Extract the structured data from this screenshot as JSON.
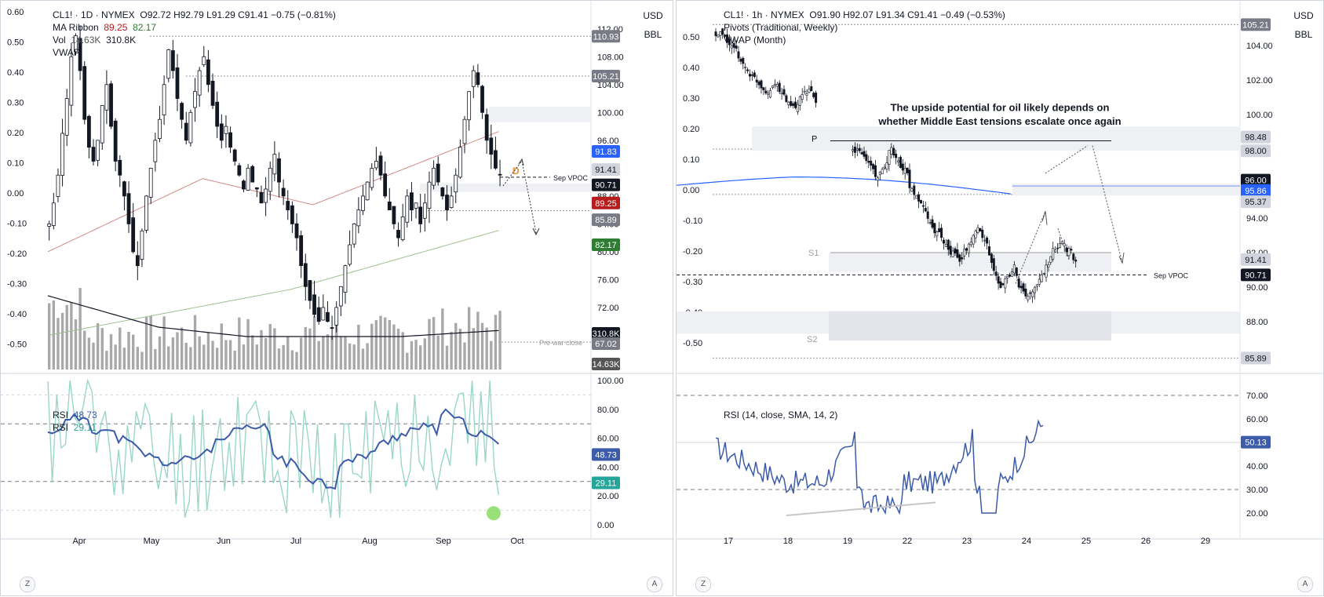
{
  "left": {
    "header": {
      "symbol": "CL1! · 1D · NYMEX",
      "ohlc": "O92.72  H92.79  L91.29  C91.41  −0.75 (−0.81%)",
      "ma_label": "MA Ribbon",
      "ma_v1": "89.25",
      "ma_v2": "82.17",
      "vol_label": "Vol",
      "vol_v1": "14.63K",
      "vol_v2": "310.8K",
      "vwap_label": "VWAP"
    },
    "unit_top": "USD",
    "unit_bottom": "BBL",
    "rsi_legend": {
      "line1_label": "RSI",
      "line1_value": "48.73",
      "line2_label": "RSI",
      "line2_value": "29.11"
    },
    "annotations": {
      "vpoc": "Sep VPOC",
      "prewar": "Pre-war close",
      "d_marker": "D"
    },
    "tags": [
      "110.93",
      "105.21",
      "91.83",
      "91.41",
      "90.71",
      "89.25",
      "85.89",
      "82.17",
      "310.8K",
      "67.02",
      "14.63K",
      "48.73",
      "29.11"
    ],
    "bottom_buttons": [
      "Z",
      "A"
    ],
    "colors": {
      "up": "#26a69a",
      "candle": "#131722",
      "ma1": "#d28b87",
      "ma2": "#9fbf8f",
      "vwap": "#131722",
      "rsi1": "#3c5ba9",
      "rsi2": "#9ad6c9",
      "vol": "#9e9e9e",
      "tag_red": "#b71c1c",
      "tag_green": "#2e7d32",
      "tag_blue": "#2962ff",
      "tag_dark": "#131722"
    }
  },
  "right": {
    "header": {
      "symbol": "CL1! · 1h · NYMEX",
      "ohlc": "O91.90  H92.07  L91.34  C91.41  −0.49 (−0.53%)",
      "pivots": "Pivots (Traditional, Weekly)",
      "vwap": "VWAP (Month)"
    },
    "unit_top": "USD",
    "unit_bottom": "BBL",
    "annotation_text_line1": "The upside potential for oil likely depends on",
    "annotation_text_line2": "whether Middle East tensions escalate once again",
    "pivot_labels": {
      "p": "P",
      "s1": "S1",
      "s2": "S2"
    },
    "vpoc": "Sep VPOC",
    "rsi_legend": "RSI (14, close, SMA, 14, 2)",
    "tags": [
      "105.21",
      "98.48",
      "98.00",
      "96.00",
      "95.86",
      "95.37",
      "91.41",
      "90.71",
      "85.89",
      "50.13"
    ],
    "bottom_buttons": [
      "Z",
      "A"
    ]
  },
  "chart_data": [
    {
      "type": "candlestick",
      "title": "CL1! · 1D · NYMEX",
      "x_ticks": [
        "Apr",
        "May",
        "Jun",
        "Jul",
        "Aug",
        "Sep",
        "Oct"
      ],
      "y_ticks_right": [
        "112.00",
        "108.00",
        "104.00",
        "100.00",
        "96.00",
        "92.00",
        "88.00",
        "84.00",
        "80.00",
        "76.00",
        "72.00",
        "68.00",
        "64.00"
      ],
      "y_ticks_left": [
        "0.60",
        "0.50",
        "0.40",
        "0.30",
        "0.20",
        "0.10",
        "0.00",
        "-0.10",
        "-0.20",
        "-0.30",
        "-0.40",
        "-0.50"
      ],
      "close_series": [
        84,
        87,
        91,
        97,
        102,
        108,
        111,
        106,
        99,
        95,
        93,
        96,
        101,
        104,
        98,
        93,
        91,
        88,
        84,
        80,
        78,
        83,
        88,
        92,
        96,
        99,
        104,
        109,
        106,
        102,
        99,
        96,
        100,
        103,
        106,
        108,
        104,
        101,
        98,
        96,
        98,
        95,
        93,
        91,
        89,
        92,
        90,
        89,
        87,
        89,
        92,
        94,
        90,
        88,
        86,
        84,
        82,
        78,
        75,
        73,
        71,
        70,
        72,
        70,
        69,
        72,
        75,
        78,
        81,
        84,
        86,
        88,
        90,
        92,
        93,
        91,
        88,
        86,
        84,
        82,
        85,
        88,
        86,
        87,
        84,
        87,
        90,
        92,
        90,
        88,
        86,
        88,
        91,
        95,
        99,
        103,
        106,
        104,
        100,
        96,
        94,
        92,
        91
      ],
      "ylim": [
        64,
        114
      ],
      "ma_ribbon": {
        "ma1": 89.25,
        "ma2": 82.17
      },
      "volume_last": "14.63K",
      "vwap_last": "310.8K",
      "levels": {
        "110.93": 110.93,
        "105.21": 105.21,
        "Sep VPOC": 90.71,
        "Pre-war close": 67.02,
        "85.89": 85.89
      },
      "rsi": {
        "series": [
          {
            "name": "RSI",
            "last": 48.73
          },
          {
            "name": "RSI",
            "last": 29.11
          }
        ],
        "y_ticks": [
          "100.00",
          "80.00",
          "60.00",
          "40.00",
          "20.00",
          "0.00"
        ],
        "ylim": [
          0,
          100
        ]
      }
    },
    {
      "type": "candlestick",
      "title": "CL1! · 1h · NYMEX",
      "x_ticks": [
        "17",
        "18",
        "19",
        "22",
        "23",
        "24",
        "25",
        "26",
        "29"
      ],
      "y_ticks_right": [
        "104.00",
        "102.00",
        "100.00",
        "98.00",
        "96.00",
        "94.00",
        "92.00",
        "90.00",
        "88.00"
      ],
      "y_ticks_left": [
        "0.50",
        "0.40",
        "0.30",
        "0.20",
        "0.10",
        "0.00",
        "-0.10",
        "-0.20",
        "-0.30",
        "-0.40",
        "-0.50"
      ],
      "close_series": [
        104.6,
        104.3,
        103.8,
        103.2,
        102.6,
        102.1,
        101.7,
        101.4,
        101.8,
        101.2,
        100.7,
        100.3,
        101.0,
        101.4,
        100.6,
        null,
        97.9,
        97.6,
        97.1,
        96.4,
        96.8,
        98.0,
        97.3,
        96.7,
        95.6,
        95.0,
        94.3,
        93.5,
        93.0,
        92.6,
        92.0,
        91.6,
        92.2,
        92.9,
        93.4,
        92.7,
        91.0,
        89.9,
        90.6,
        91.2,
        89.8,
        89.4,
        89.9,
        90.6,
        91.3,
        92.2,
        92.7,
        92.1,
        91.4
      ],
      "ylim": [
        85.5,
        105.5
      ],
      "vwap_month_last": 95.86,
      "pivots": {
        "P": 98.48,
        "S1": 91.8,
        "S2": 88.0
      },
      "levels": {
        "105.21": 105.21,
        "98.00": 98.0,
        "96.00": 96.0,
        "95.37": 95.37,
        "Sep VPOC": 90.71,
        "85.89": 85.89
      },
      "rsi": {
        "series": [
          {
            "name": "RSI (14, close, SMA, 14, 2)",
            "last": 50.13
          }
        ],
        "y_ticks": [
          "70.00",
          "60.00",
          "50.00",
          "40.00",
          "30.00",
          "20.00"
        ],
        "ylim": [
          15,
          75
        ]
      }
    }
  ]
}
